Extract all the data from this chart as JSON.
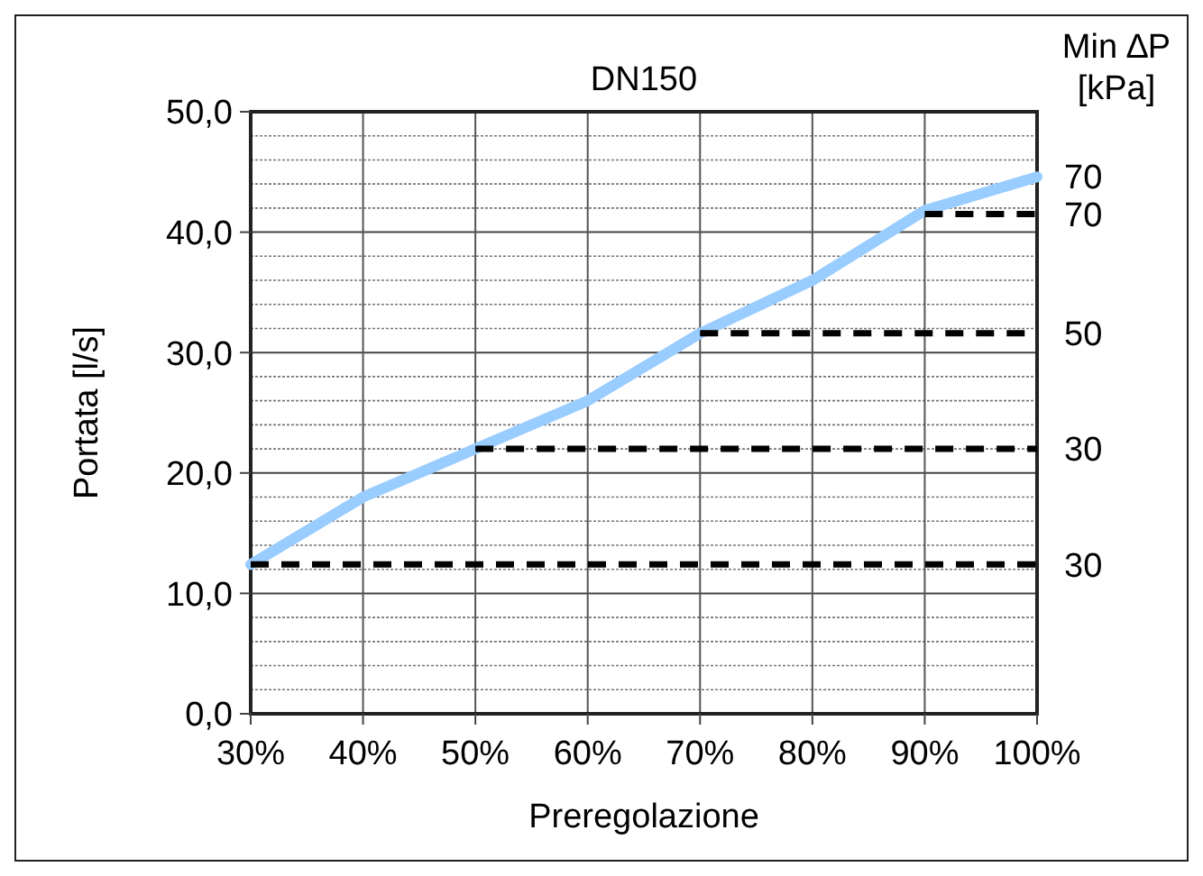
{
  "chart_data": {
    "type": "line",
    "title": "DN150",
    "xlabel": "Preregolazione",
    "ylabel": "Portata [l/s]",
    "xlim": [
      30,
      100
    ],
    "xticks": [
      {
        "value": 30,
        "label": "30%"
      },
      {
        "value": 40,
        "label": "40%"
      },
      {
        "value": 50,
        "label": "50%"
      },
      {
        "value": 60,
        "label": "60%"
      },
      {
        "value": 70,
        "label": "70%"
      },
      {
        "value": 80,
        "label": "80%"
      },
      {
        "value": 90,
        "label": "90%"
      },
      {
        "value": 100,
        "label": "100%"
      }
    ],
    "ylim": [
      0,
      50
    ],
    "yticks": [
      {
        "value": 0,
        "label": "0,0"
      },
      {
        "value": 2,
        "label": null
      },
      {
        "value": 4,
        "label": null
      },
      {
        "value": 6,
        "label": null
      },
      {
        "value": 8,
        "label": null
      },
      {
        "value": 10,
        "label": "10,0"
      },
      {
        "value": 12,
        "label": null
      },
      {
        "value": 14,
        "label": null
      },
      {
        "value": 16,
        "label": null
      },
      {
        "value": 18,
        "label": null
      },
      {
        "value": 20,
        "label": "20,0"
      },
      {
        "value": 22,
        "label": null
      },
      {
        "value": 24,
        "label": null
      },
      {
        "value": 26,
        "label": null
      },
      {
        "value": 28,
        "label": null
      },
      {
        "value": 30,
        "label": "30,0"
      },
      {
        "value": 32,
        "label": null
      },
      {
        "value": 34,
        "label": null
      },
      {
        "value": 36,
        "label": null
      },
      {
        "value": 38,
        "label": null
      },
      {
        "value": 40,
        "label": "40,0"
      },
      {
        "value": 42,
        "label": null
      },
      {
        "value": 44,
        "label": null
      },
      {
        "value": 46,
        "label": null
      },
      {
        "value": 48,
        "label": null
      },
      {
        "value": 50,
        "label": "50,0"
      }
    ],
    "grid": true,
    "marker": "none",
    "series": [
      {
        "name": "70",
        "color": "#99ccff",
        "line_style": "solid",
        "x": [
          30,
          40,
          50,
          60,
          70,
          80,
          90,
          100
        ],
        "values": [
          12.4,
          18.0,
          22.0,
          26.0,
          31.6,
          36.0,
          41.8,
          44.6
        ]
      },
      {
        "name": "30",
        "color": "#000000",
        "line_style": "dashed",
        "x": [
          30,
          100
        ],
        "values": [
          12.4,
          12.4
        ]
      },
      {
        "name": "30",
        "color": "#000000",
        "line_style": "dashed",
        "x": [
          50,
          100
        ],
        "values": [
          22.0,
          22.0
        ]
      },
      {
        "name": "50",
        "color": "#000000",
        "line_style": "dashed",
        "x": [
          70,
          100
        ],
        "values": [
          31.6,
          31.6
        ]
      },
      {
        "name": "70",
        "color": "#000000",
        "line_style": "dashed",
        "x": [
          90,
          100
        ],
        "values": [
          41.5,
          41.5
        ]
      }
    ],
    "annotations": [
      "Min ∆P [kPa]"
    ]
  }
}
